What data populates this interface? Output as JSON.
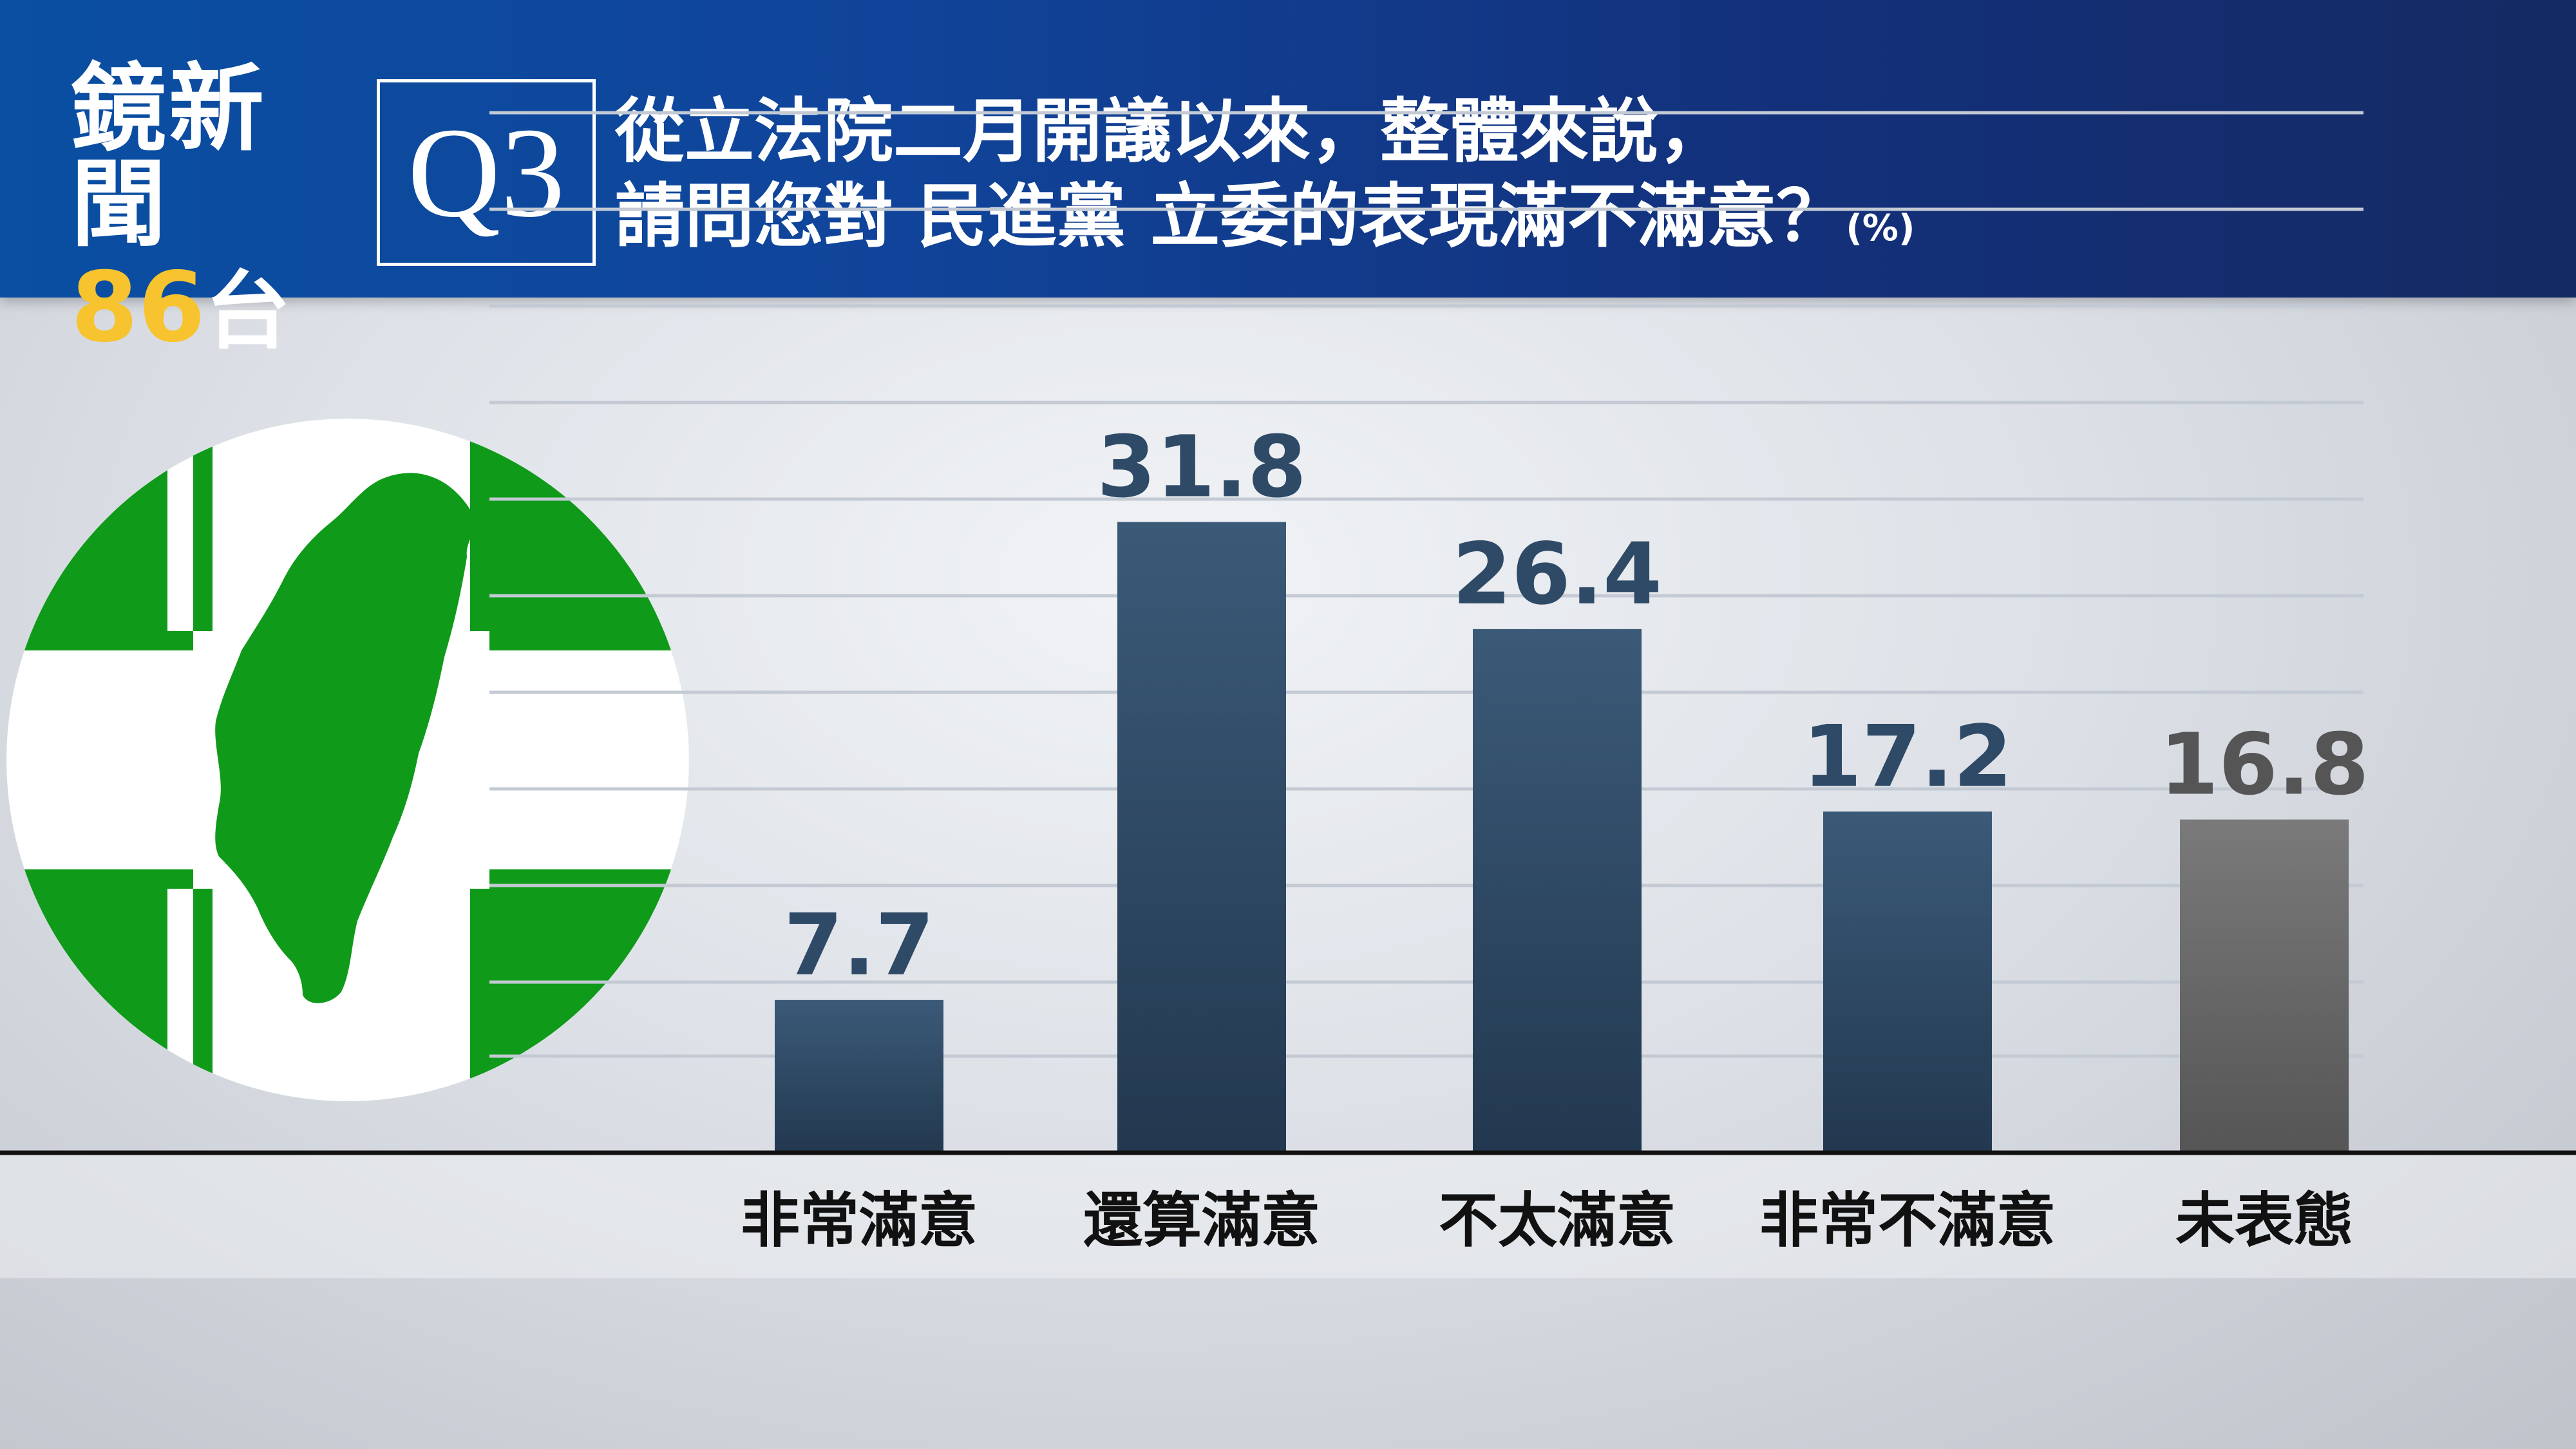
{
  "header": {
    "logo_name": "鏡新聞",
    "logo_channel_number": "86",
    "logo_channel_suffix": "台",
    "question_number": "Q3",
    "question_line1": "從立法院二月開議以來，整體來說，",
    "question_line2": "請問您對 民進黨 立委的表現滿不滿意？",
    "unit": "(%)"
  },
  "emblem": {
    "icon": "dpp-party-emblem-icon",
    "colors": {
      "green": "#0f9a1a",
      "white": "#ffffff"
    }
  },
  "colors": {
    "bar": "#2d4a66",
    "bar_undecided": "#6b6b6b",
    "label_value": "#2e4a66",
    "label_value_undecided": "#555555",
    "axis": "#111111"
  },
  "chart_data": {
    "type": "bar",
    "categories": [
      "非常滿意",
      "還算滿意",
      "不太滿意",
      "非常不滿意",
      "未表態"
    ],
    "values": [
      7.7,
      31.8,
      26.4,
      17.2,
      16.8
    ],
    "value_labels": [
      "7.7",
      "31.8",
      "26.4",
      "17.2",
      "16.8"
    ],
    "title": "",
    "xlabel": "",
    "ylabel": "",
    "ylim": [
      0,
      35
    ],
    "grid": true,
    "legend": "none"
  }
}
